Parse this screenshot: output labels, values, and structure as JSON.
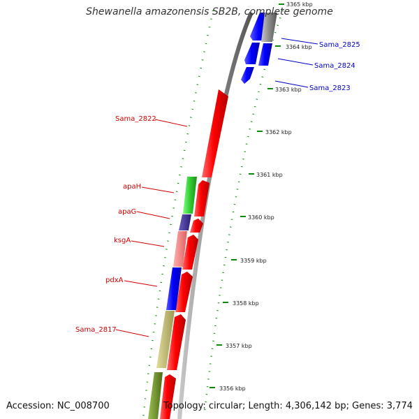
{
  "title": "Shewanella amazonensis SB2B, complete genome",
  "footer": {
    "accession": "Accession: NC_008700",
    "topology": "Topology: circular; Length: 4,306,142 bp; Genes: 3,774"
  },
  "scale_ticks": [
    "3365 kbp",
    "3364 kbp",
    "3363 kbp",
    "3362 kbp",
    "3361 kbp",
    "3360 kbp",
    "3359 kbp",
    "3358 kbp",
    "3357 kbp",
    "3356 kbp"
  ],
  "gene_labels": [
    {
      "text": "Sama_2825",
      "color": "#0000c8"
    },
    {
      "text": "Sama_2824",
      "color": "#0000c8"
    },
    {
      "text": "Sama_2823",
      "color": "#0000c8"
    },
    {
      "text": "Sama_2822",
      "color": "#d00000"
    },
    {
      "text": "apaH",
      "color": "#d00000"
    },
    {
      "text": "apaG",
      "color": "#d00000"
    },
    {
      "text": "ksgA",
      "color": "#d00000"
    },
    {
      "text": "pdxA",
      "color": "#d00000"
    },
    {
      "text": "Sama_2817",
      "color": "#d00000"
    }
  ],
  "colors": {
    "forward": "#ff0000",
    "reverse": "#0000ff",
    "backbone": "#808080",
    "tick_green": "#008000",
    "cog_green": "#33cc33",
    "cog_purple": "#3b2e8c",
    "cog_pink": "#f08080",
    "cog_blue": "#0000ff",
    "cog_khaki": "#bdb76b",
    "cog_olive": "#6b8e23"
  }
}
